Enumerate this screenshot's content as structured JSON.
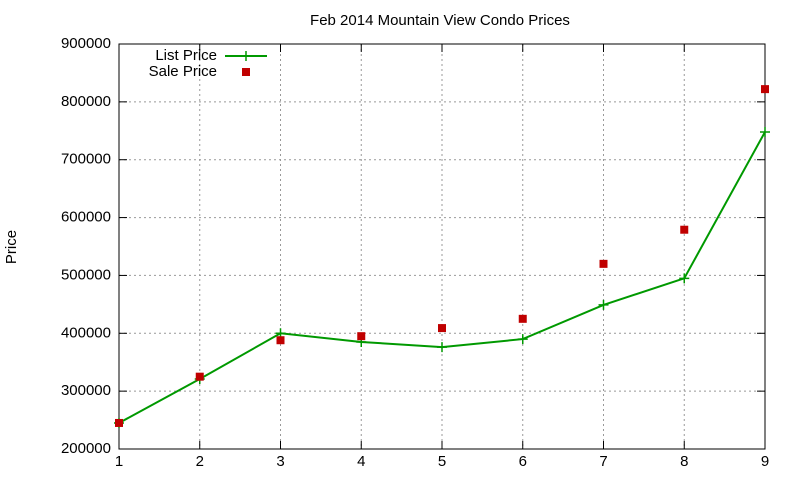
{
  "chart_data": {
    "type": "line",
    "title": "Feb 2014 Mountain View Condo Prices",
    "y_label": "Price",
    "x": [
      1,
      2,
      3,
      4,
      5,
      6,
      7,
      8,
      9
    ],
    "series": [
      {
        "name": "List Price",
        "color": "#009900",
        "style": "linespoints",
        "values": [
          245000,
          321000,
          400000,
          385000,
          376000,
          390000,
          449000,
          495000,
          748000
        ]
      },
      {
        "name": "Sale Price",
        "color": "#c00000",
        "style": "points",
        "values": [
          245000,
          325000,
          388000,
          395000,
          409000,
          425000,
          520000,
          579000,
          822000
        ]
      }
    ],
    "xlim": [
      1,
      9
    ],
    "xticks": [
      1,
      2,
      3,
      4,
      5,
      6,
      7,
      8,
      9
    ],
    "ylim": [
      200000,
      900000
    ],
    "yticks": [
      200000,
      300000,
      400000,
      500000,
      600000,
      700000,
      800000,
      900000
    ],
    "grid": true,
    "legend_position": "top-left"
  }
}
